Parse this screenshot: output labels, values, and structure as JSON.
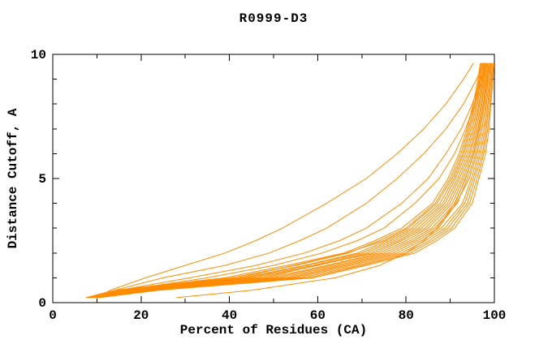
{
  "chart_data": {
    "type": "line",
    "title": "R0999-D3",
    "xlabel": "Percent of Residues (CA)",
    "ylabel": "Distance Cutoff, A",
    "xlim": [
      0,
      100
    ],
    "ylim": [
      0,
      10
    ],
    "x_major_ticks": [
      0,
      20,
      40,
      60,
      80,
      100
    ],
    "x_minor_step": 10,
    "y_major_ticks": [
      0,
      5,
      10
    ],
    "y_minor_step": 1,
    "grid": false,
    "legend_position": "none",
    "colors": {
      "line": "#ff8c00",
      "axis": "#000000",
      "text": "#000000",
      "background": "#ffffff"
    },
    "lines": [
      [
        [
          7.5,
          0.2
        ],
        [
          14,
          0.5
        ],
        [
          39,
          1
        ],
        [
          53,
          1.5
        ],
        [
          66,
          2
        ],
        [
          73,
          2.5
        ],
        [
          79,
          3
        ],
        [
          86,
          4
        ],
        [
          89.5,
          5
        ],
        [
          92,
          6
        ],
        [
          93.8,
          7
        ],
        [
          95.2,
          8
        ],
        [
          96.3,
          9
        ],
        [
          96.8,
          9.65
        ]
      ],
      [
        [
          7.7,
          0.2
        ],
        [
          15,
          0.5
        ],
        [
          40.5,
          1
        ],
        [
          55,
          1.5
        ],
        [
          67,
          2
        ],
        [
          74,
          2.5
        ],
        [
          80,
          3
        ],
        [
          86.6,
          4
        ],
        [
          90,
          5
        ],
        [
          92.4,
          6
        ],
        [
          94.1,
          7
        ],
        [
          95.5,
          8
        ],
        [
          96.5,
          9
        ],
        [
          97,
          9.65
        ]
      ],
      [
        [
          7.9,
          0.2
        ],
        [
          15.3,
          0.5
        ],
        [
          42,
          1
        ],
        [
          54.5,
          1.5
        ],
        [
          66.5,
          2
        ],
        [
          75,
          2.5
        ],
        [
          80.5,
          3
        ],
        [
          87,
          4
        ],
        [
          90.4,
          5
        ],
        [
          92.8,
          6
        ],
        [
          94.4,
          7
        ],
        [
          95.7,
          8
        ],
        [
          96.7,
          9
        ],
        [
          97.2,
          9.65
        ]
      ],
      [
        [
          8.1,
          0.2
        ],
        [
          16,
          0.5
        ],
        [
          43,
          1
        ],
        [
          57,
          1.5
        ],
        [
          69,
          2
        ],
        [
          75.6,
          2.5
        ],
        [
          81.3,
          3
        ],
        [
          87.7,
          4
        ],
        [
          90.8,
          5
        ],
        [
          93.1,
          6
        ],
        [
          94.7,
          7
        ],
        [
          96,
          8
        ],
        [
          96.9,
          9
        ],
        [
          97.4,
          9.65
        ]
      ],
      [
        [
          8.3,
          0.2
        ],
        [
          16.5,
          0.5
        ],
        [
          44,
          1
        ],
        [
          57.5,
          1.5
        ],
        [
          70,
          2
        ],
        [
          76.5,
          2.5
        ],
        [
          82,
          3
        ],
        [
          88.3,
          4
        ],
        [
          91.2,
          5
        ],
        [
          93.5,
          6
        ],
        [
          95.1,
          7
        ],
        [
          96.2,
          8
        ],
        [
          97.2,
          9
        ],
        [
          97.6,
          9.65
        ]
      ],
      [
        [
          8.4,
          0.2
        ],
        [
          17,
          0.5
        ],
        [
          45.2,
          1
        ],
        [
          59,
          1.5
        ],
        [
          71,
          2
        ],
        [
          77.4,
          2.5
        ],
        [
          82.8,
          3
        ],
        [
          88.8,
          4
        ],
        [
          91.7,
          5
        ],
        [
          93.9,
          6
        ],
        [
          95.4,
          7
        ],
        [
          96.5,
          8
        ],
        [
          97.4,
          9
        ],
        [
          97.7,
          9.65
        ]
      ],
      [
        [
          8.6,
          0.2
        ],
        [
          17.8,
          0.5
        ],
        [
          46.5,
          1
        ],
        [
          60,
          1.5
        ],
        [
          72,
          2
        ],
        [
          78.3,
          2.5
        ],
        [
          83.5,
          3
        ],
        [
          89.4,
          4
        ],
        [
          92.1,
          5
        ],
        [
          94.3,
          6
        ],
        [
          95.7,
          7
        ],
        [
          96.7,
          8
        ],
        [
          97.6,
          9
        ],
        [
          97.9,
          9.65
        ]
      ],
      [
        [
          8.8,
          0.2
        ],
        [
          18.4,
          0.5
        ],
        [
          48,
          1
        ],
        [
          59.5,
          1.5
        ],
        [
          73,
          2
        ],
        [
          79,
          2.5
        ],
        [
          84.3,
          3
        ],
        [
          89.9,
          4
        ],
        [
          92.6,
          5
        ],
        [
          94.6,
          6
        ],
        [
          96,
          7
        ],
        [
          97,
          8
        ],
        [
          97.8,
          9
        ],
        [
          98.1,
          9.65
        ]
      ],
      [
        [
          9,
          0.2
        ],
        [
          19,
          0.5
        ],
        [
          49,
          1
        ],
        [
          62,
          1.5
        ],
        [
          74,
          2
        ],
        [
          80,
          2.5
        ],
        [
          85,
          3
        ],
        [
          90.5,
          4
        ],
        [
          93,
          5
        ],
        [
          95,
          6
        ],
        [
          96.3,
          7
        ],
        [
          97.2,
          8
        ],
        [
          98,
          9
        ],
        [
          98.3,
          9.65
        ]
      ],
      [
        [
          9.2,
          0.2
        ],
        [
          19.6,
          0.5
        ],
        [
          50.3,
          1
        ],
        [
          63,
          1.5
        ],
        [
          75,
          2
        ],
        [
          81,
          2.5
        ],
        [
          85.8,
          3
        ],
        [
          91.1,
          4
        ],
        [
          93.4,
          5
        ],
        [
          95.4,
          6
        ],
        [
          96.6,
          7
        ],
        [
          97.5,
          8
        ],
        [
          98.2,
          9
        ],
        [
          98.5,
          9.65
        ]
      ],
      [
        [
          9.4,
          0.2
        ],
        [
          20.3,
          0.5
        ],
        [
          51.5,
          1
        ],
        [
          64.3,
          1.5
        ],
        [
          76,
          2
        ],
        [
          81.8,
          2.5
        ],
        [
          86.5,
          3
        ],
        [
          91.6,
          4
        ],
        [
          93.9,
          5
        ],
        [
          95.8,
          6
        ],
        [
          96.9,
          7
        ],
        [
          97.7,
          8
        ],
        [
          98.4,
          9
        ],
        [
          98.7,
          9.65
        ]
      ],
      [
        [
          9.6,
          0.2
        ],
        [
          21,
          0.5
        ],
        [
          53,
          1
        ],
        [
          65.4,
          1.5
        ],
        [
          77,
          2
        ],
        [
          82.6,
          2.5
        ],
        [
          87.3,
          3
        ],
        [
          91.4,
          4
        ],
        [
          94.3,
          5
        ],
        [
          96.1,
          6
        ],
        [
          97.2,
          7
        ],
        [
          98,
          8
        ],
        [
          98.6,
          9
        ],
        [
          98.9,
          9.65
        ]
      ],
      [
        [
          9.8,
          0.2
        ],
        [
          21.5,
          0.5
        ],
        [
          54,
          1
        ],
        [
          66.5,
          1.5
        ],
        [
          78,
          2
        ],
        [
          83.5,
          2.5
        ],
        [
          88,
          3
        ],
        [
          92.8,
          4
        ],
        [
          94.8,
          5
        ],
        [
          96.5,
          6
        ],
        [
          97.6,
          7
        ],
        [
          98.2,
          8
        ],
        [
          98.9,
          9
        ],
        [
          99.1,
          9.65
        ]
      ],
      [
        [
          9.9,
          0.2
        ],
        [
          22,
          0.5
        ],
        [
          55.2,
          1
        ],
        [
          67.6,
          1.5
        ],
        [
          79,
          2
        ],
        [
          84.4,
          2.5
        ],
        [
          88.8,
          3
        ],
        [
          93.3,
          4
        ],
        [
          95.2,
          5
        ],
        [
          96.9,
          6
        ],
        [
          97.9,
          7
        ],
        [
          98.5,
          8
        ],
        [
          99.1,
          9
        ],
        [
          99.3,
          9.65
        ]
      ],
      [
        [
          10.1,
          0.2
        ],
        [
          21.8,
          0.5
        ],
        [
          56.5,
          1
        ],
        [
          69,
          1.5
        ],
        [
          80,
          2
        ],
        [
          85.3,
          2.5
        ],
        [
          89.5,
          3
        ],
        [
          93.9,
          4
        ],
        [
          95.6,
          5
        ],
        [
          97.3,
          6
        ],
        [
          98.2,
          7
        ],
        [
          98.7,
          8
        ],
        [
          99.3,
          9
        ],
        [
          99.5,
          9.65
        ]
      ],
      [
        [
          10.3,
          0.2
        ],
        [
          23.4,
          0.5
        ],
        [
          58,
          1
        ],
        [
          70,
          1.5
        ],
        [
          81,
          2
        ],
        [
          86.1,
          2.5
        ],
        [
          90.3,
          3
        ],
        [
          94.4,
          4
        ],
        [
          96.1,
          5
        ],
        [
          97.6,
          6
        ],
        [
          98.5,
          7
        ],
        [
          99,
          8
        ],
        [
          99.5,
          9
        ],
        [
          99.7,
          9.65
        ]
      ],
      [
        [
          10.5,
          0.2
        ],
        [
          24,
          0.5
        ],
        [
          59,
          1
        ],
        [
          71,
          1.5
        ],
        [
          82,
          2
        ],
        [
          87,
          2.5
        ],
        [
          91,
          3
        ],
        [
          95,
          4
        ],
        [
          96.5,
          5
        ],
        [
          98,
          6
        ],
        [
          98.8,
          7
        ],
        [
          99.2,
          8
        ],
        [
          99.7,
          9
        ],
        [
          99.9,
          9.65
        ]
      ],
      [
        [
          10,
          0.2
        ],
        [
          13,
          0.5
        ],
        [
          21,
          1
        ],
        [
          30,
          1.5
        ],
        [
          39,
          2
        ],
        [
          46,
          2.5
        ],
        [
          52,
          3
        ],
        [
          62,
          4
        ],
        [
          71,
          5
        ],
        [
          78,
          6
        ],
        [
          84,
          7
        ],
        [
          89,
          8
        ],
        [
          93,
          9
        ],
        [
          95.3,
          9.65
        ]
      ],
      [
        [
          9.5,
          0.2
        ],
        [
          14,
          0.5
        ],
        [
          25,
          1
        ],
        [
          39,
          1.5
        ],
        [
          49,
          2
        ],
        [
          56,
          2.5
        ],
        [
          62,
          3
        ],
        [
          71,
          4
        ],
        [
          78,
          5
        ],
        [
          84,
          6
        ],
        [
          89,
          7
        ],
        [
          93,
          8
        ],
        [
          96,
          9
        ],
        [
          97.5,
          9.65
        ]
      ],
      [
        [
          9,
          0.2
        ],
        [
          15,
          0.5
        ],
        [
          31,
          1
        ],
        [
          46,
          1.5
        ],
        [
          57,
          2
        ],
        [
          65,
          2.5
        ],
        [
          71,
          3
        ],
        [
          79,
          4
        ],
        [
          85,
          5
        ],
        [
          89,
          6
        ],
        [
          92.5,
          7
        ],
        [
          95,
          8
        ],
        [
          97,
          9
        ],
        [
          98,
          9.65
        ]
      ],
      [
        [
          9,
          0.2
        ],
        [
          16,
          0.5
        ],
        [
          35,
          1
        ],
        [
          50,
          1.5
        ],
        [
          61,
          2
        ],
        [
          69,
          2.5
        ],
        [
          75,
          3
        ],
        [
          82,
          4
        ],
        [
          87.5,
          5
        ],
        [
          91,
          6
        ],
        [
          93.5,
          7
        ],
        [
          95.5,
          8
        ],
        [
          97.3,
          9
        ],
        [
          98.2,
          9.65
        ]
      ],
      [
        [
          28,
          0.2
        ],
        [
          45,
          0.5
        ],
        [
          64,
          1
        ],
        [
          74,
          1.5
        ],
        [
          80,
          2
        ],
        [
          84,
          2.5
        ],
        [
          87,
          3
        ],
        [
          91,
          4
        ],
        [
          93.5,
          5
        ],
        [
          95.3,
          6
        ],
        [
          96.5,
          7
        ],
        [
          97.5,
          8
        ],
        [
          98.5,
          9
        ],
        [
          99.2,
          9.65
        ]
      ]
    ]
  }
}
